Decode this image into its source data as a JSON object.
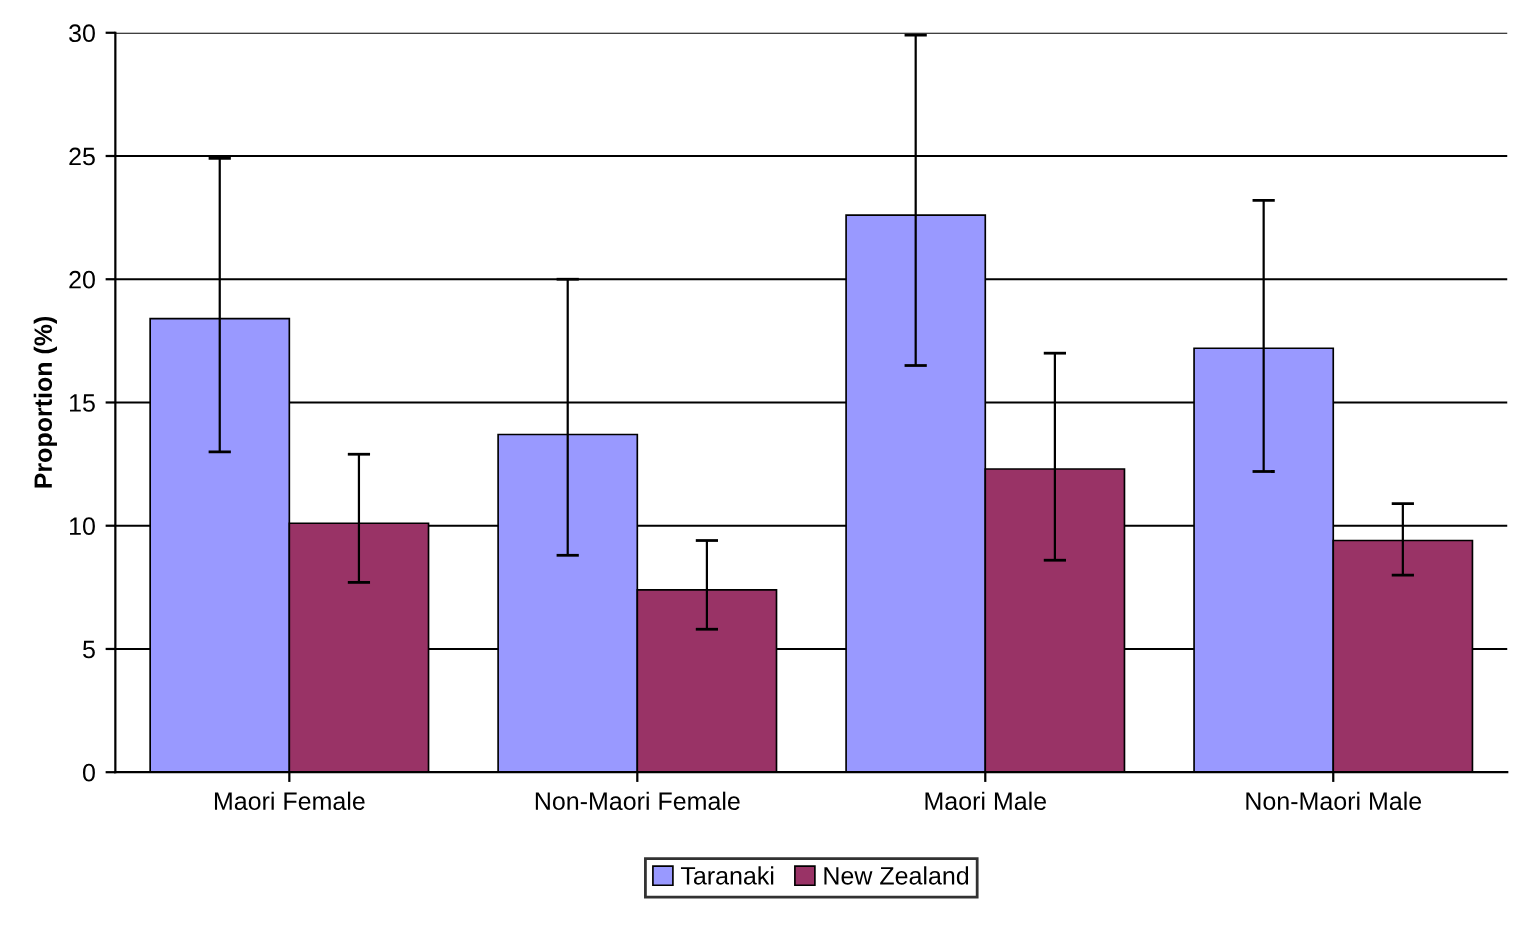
{
  "chart_data": {
    "type": "bar",
    "ylabel": "Proportion (%)",
    "categories": [
      "Maori Female",
      "Non-Maori Female",
      "Maori Male",
      "Non-Maori Male"
    ],
    "series": [
      {
        "name": "Taranaki",
        "color": "#9999ff",
        "values": [
          18.4,
          13.7,
          22.6,
          17.2
        ],
        "errors": [
          [
            13.0,
            24.9
          ],
          [
            8.8,
            20.0
          ],
          [
            16.5,
            29.9
          ],
          [
            12.2,
            23.2
          ]
        ]
      },
      {
        "name": "New Zealand",
        "color": "#993366",
        "values": [
          10.1,
          7.4,
          12.3,
          9.4
        ],
        "errors": [
          [
            7.7,
            12.9
          ],
          [
            5.8,
            9.4
          ],
          [
            8.6,
            17.0
          ],
          [
            8.0,
            10.9
          ]
        ]
      }
    ],
    "ylim": [
      0,
      30
    ],
    "yticks": [
      0,
      5,
      10,
      15,
      20,
      25,
      30
    ],
    "grid": "y",
    "legend": "bottom"
  }
}
